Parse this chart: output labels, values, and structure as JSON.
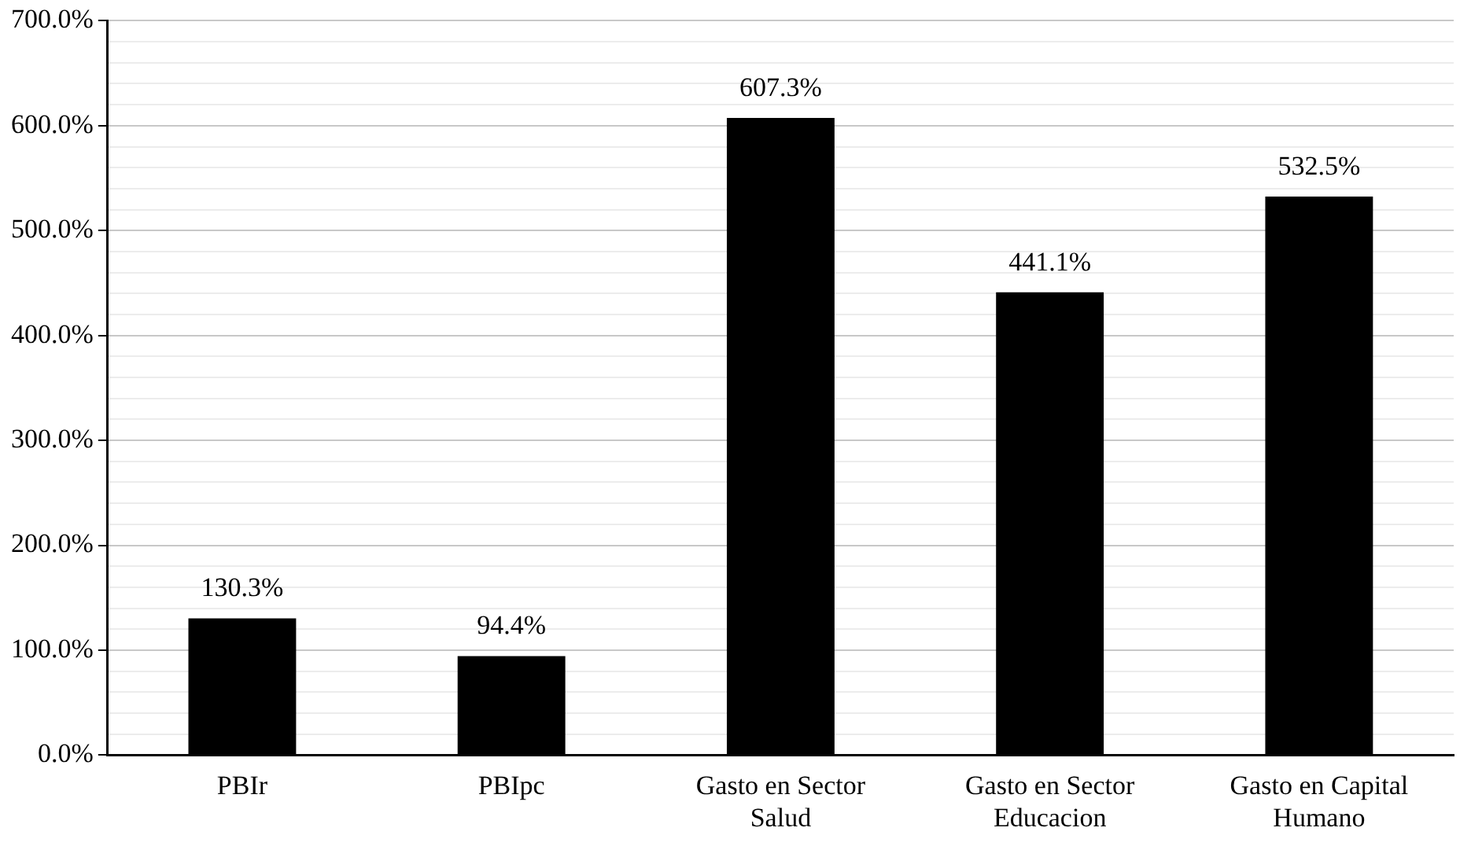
{
  "chart_data": {
    "type": "bar",
    "categories": [
      "PBIr",
      "PBIpc",
      "Gasto en Sector Salud",
      "Gasto en Sector Educacion",
      "Gasto en Capital Humano"
    ],
    "values": [
      130.3,
      94.4,
      607.3,
      441.1,
      532.5
    ],
    "color": "#000000",
    "value_labels": [
      "130.3%",
      "94.4%",
      "607.3%",
      "441.1%",
      "532.5%"
    ],
    "ylim": [
      0,
      700
    ],
    "yticks": [
      {
        "value": 0,
        "label": "0.0%"
      },
      {
        "value": 20,
        "label": null
      },
      {
        "value": 40,
        "label": null
      },
      {
        "value": 60,
        "label": null
      },
      {
        "value": 80,
        "label": null
      },
      {
        "value": 100,
        "label": "100.0%"
      },
      {
        "value": 120,
        "label": null
      },
      {
        "value": 140,
        "label": null
      },
      {
        "value": 160,
        "label": null
      },
      {
        "value": 180,
        "label": null
      },
      {
        "value": 200,
        "label": "200.0%"
      },
      {
        "value": 220,
        "label": null
      },
      {
        "value": 240,
        "label": null
      },
      {
        "value": 260,
        "label": null
      },
      {
        "value": 280,
        "label": null
      },
      {
        "value": 300,
        "label": "300.0%"
      },
      {
        "value": 320,
        "label": null
      },
      {
        "value": 340,
        "label": null
      },
      {
        "value": 360,
        "label": null
      },
      {
        "value": 380,
        "label": null
      },
      {
        "value": 400,
        "label": "400.0%"
      },
      {
        "value": 420,
        "label": null
      },
      {
        "value": 440,
        "label": null
      },
      {
        "value": 460,
        "label": null
      },
      {
        "value": 480,
        "label": null
      },
      {
        "value": 500,
        "label": "500.0%"
      },
      {
        "value": 520,
        "label": null
      },
      {
        "value": 540,
        "label": null
      },
      {
        "value": 560,
        "label": null
      },
      {
        "value": 580,
        "label": null
      },
      {
        "value": 600,
        "label": "600.0%"
      },
      {
        "value": 620,
        "label": null
      },
      {
        "value": 640,
        "label": null
      },
      {
        "value": 660,
        "label": null
      },
      {
        "value": 680,
        "label": null
      },
      {
        "value": 700,
        "label": "700.0%"
      }
    ],
    "grid": "y"
  }
}
